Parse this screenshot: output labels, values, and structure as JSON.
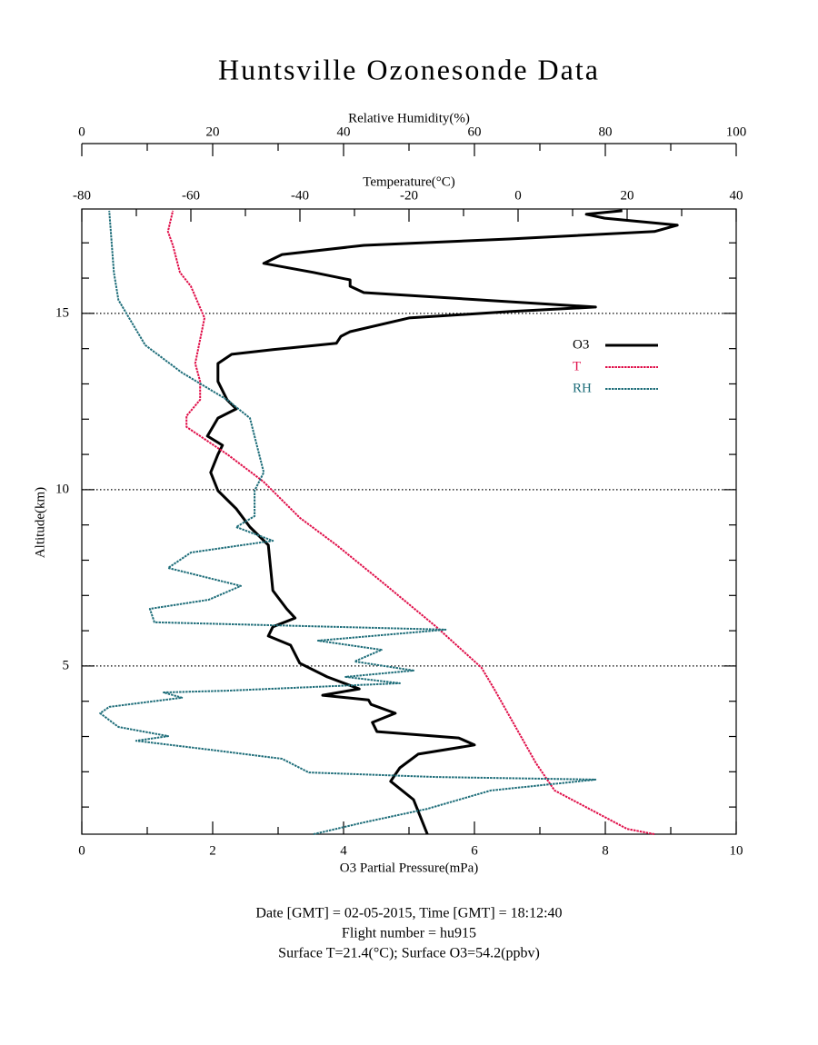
{
  "chart_data": {
    "type": "line",
    "title": "Huntsville Ozonesonde Data",
    "ylabel": "Altitude(km)",
    "ylim": [
      0.23,
      17.96
    ],
    "yticks": [
      5,
      10,
      15
    ],
    "yminorticks": [
      1,
      2,
      3,
      4,
      6,
      7,
      8,
      9,
      11,
      12,
      13,
      14,
      16,
      17
    ],
    "grid": true,
    "xlabel": "O3 Partial Pressure(mPa)",
    "xlim": [
      0,
      10
    ],
    "xticks": [
      0,
      2,
      4,
      6,
      8,
      10
    ],
    "xminorticks": [
      1,
      3,
      5,
      7,
      9
    ],
    "temperature_axis": {
      "label": "Temperature(°C)",
      "lim": [
        -80,
        40
      ],
      "ticks": [
        -80,
        -60,
        -40,
        -20,
        0,
        20,
        40
      ],
      "minorticks": [
        -70,
        -50,
        -30,
        -10,
        10,
        30
      ]
    },
    "rh_axis": {
      "label": "Relative Humidity(%)",
      "lim": [
        0,
        100
      ],
      "ticks": [
        0,
        20,
        40,
        60,
        80,
        100
      ],
      "minorticks": [
        10,
        30,
        50,
        70,
        90
      ]
    },
    "legend": "right",
    "series": [
      {
        "name": "O3",
        "color": "#000000",
        "axis": "x",
        "values": [
          5.28,
          5.07,
          4.72,
          4.86,
          5.14,
          6.0,
          5.76,
          4.51,
          4.44,
          4.79,
          4.42,
          4.38,
          3.68,
          4.24,
          3.75,
          3.33,
          3.19,
          2.85,
          2.92,
          3.26,
          3.13,
          2.92,
          2.85,
          2.57,
          2.36,
          2.08,
          1.97,
          2.08,
          2.15,
          1.92,
          2.08,
          2.36,
          2.22,
          2.08,
          2.08,
          2.29,
          2.92,
          3.89,
          3.96,
          4.1,
          5.0,
          6.53,
          7.85,
          6.11,
          4.31,
          4.1,
          4.1,
          3.54,
          2.78,
          3.06,
          4.31,
          6.53,
          8.75,
          9.1,
          7.99,
          7.71,
          8.26
        ],
        "altitudes": [
          0.23,
          1.21,
          1.73,
          2.11,
          2.5,
          2.76,
          2.96,
          3.14,
          3.4,
          3.66,
          3.91,
          4.04,
          4.17,
          4.35,
          4.69,
          5.08,
          5.59,
          5.85,
          6.11,
          6.36,
          6.62,
          7.14,
          8.43,
          8.94,
          9.46,
          9.97,
          10.49,
          11.0,
          11.26,
          11.52,
          12.03,
          12.29,
          12.55,
          13.07,
          13.58,
          13.84,
          13.97,
          14.15,
          14.35,
          14.48,
          14.87,
          15.05,
          15.18,
          15.38,
          15.59,
          15.77,
          15.95,
          16.16,
          16.42,
          16.67,
          16.93,
          17.11,
          17.32,
          17.5,
          17.7,
          17.81,
          17.91
        ]
      },
      {
        "name": "T",
        "color": "#e0104a",
        "axis": "temperature",
        "values": [
          25,
          20,
          6.7,
          3.3,
          -4.2,
          -6.7,
          -15,
          -25,
          -33.3,
          -40,
          -46.7,
          -53.3,
          -60.8,
          -60.8,
          -58.3,
          -58.3,
          -59.2,
          -57.5,
          -60,
          -62,
          -63.3,
          -64.2,
          -63.3
        ],
        "altitudes": [
          0.23,
          0.38,
          1.47,
          2.24,
          4.3,
          4.95,
          6.11,
          7.39,
          8.43,
          9.2,
          10.23,
          11.0,
          11.78,
          12.09,
          12.55,
          13.07,
          13.58,
          14.87,
          15.77,
          16.16,
          16.93,
          17.32,
          17.91
        ]
      },
      {
        "name": "RH",
        "color": "#1f6e7a",
        "axis": "rh",
        "values": [
          35.4,
          43,
          52.8,
          62.5,
          78.5,
          54.2,
          34.7,
          30.6,
          19.4,
          8.3,
          13.2,
          5.6,
          2.8,
          4.2,
          15.3,
          12.5,
          22.2,
          48.6,
          40.3,
          50.7,
          41.7,
          45.8,
          36.1,
          55.6,
          11.1,
          10.4,
          19.4,
          24.3,
          13.2,
          16.7,
          29.2,
          23.6,
          26.4,
          26.4,
          27.8,
          25.7,
          22.2,
          15.3,
          9.7,
          5.6,
          4.9,
          4.2
        ],
        "altitudes": [
          0.23,
          0.56,
          0.95,
          1.47,
          1.78,
          1.85,
          1.98,
          2.37,
          2.63,
          2.88,
          3.01,
          3.27,
          3.66,
          3.84,
          4.1,
          4.25,
          4.3,
          4.51,
          4.69,
          4.87,
          5.13,
          5.46,
          5.72,
          6.03,
          6.24,
          6.62,
          6.88,
          7.27,
          7.78,
          8.22,
          8.55,
          8.94,
          9.25,
          9.97,
          10.49,
          12.03,
          12.55,
          13.32,
          14.1,
          15.38,
          16.16,
          17.91
        ]
      }
    ],
    "notes": [
      "Date [GMT] = 02-05-2015,  Time [GMT] = 18:12:40",
      "Flight number = hu915",
      "Surface T=21.4(°C); Surface O3=54.2(ppbv)"
    ]
  }
}
